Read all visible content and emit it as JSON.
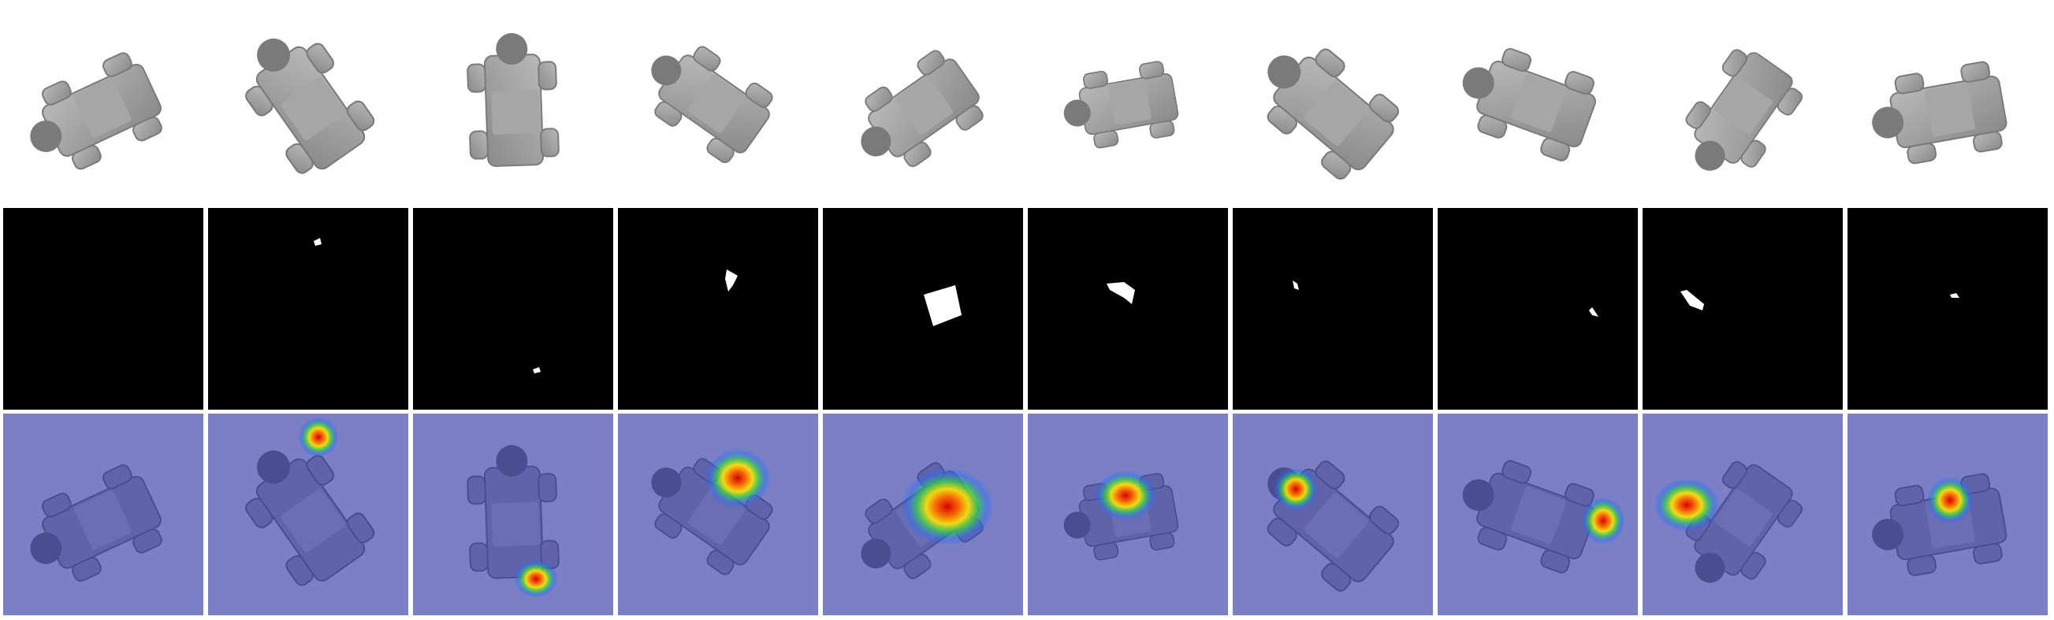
{
  "figure": {
    "rows": [
      {
        "row_type": "render"
      },
      {
        "row_type": "mask"
      },
      {
        "row_type": "heatmap"
      }
    ],
    "columns": 10,
    "colors": {
      "background": "#ffffff",
      "mask_background": "#000000",
      "mask_foreground": "#ffffff",
      "object": "#9a9a9a",
      "object_shadow": "#6f6f6f",
      "heatmap_overlay": "#7b80c4"
    }
  }
}
